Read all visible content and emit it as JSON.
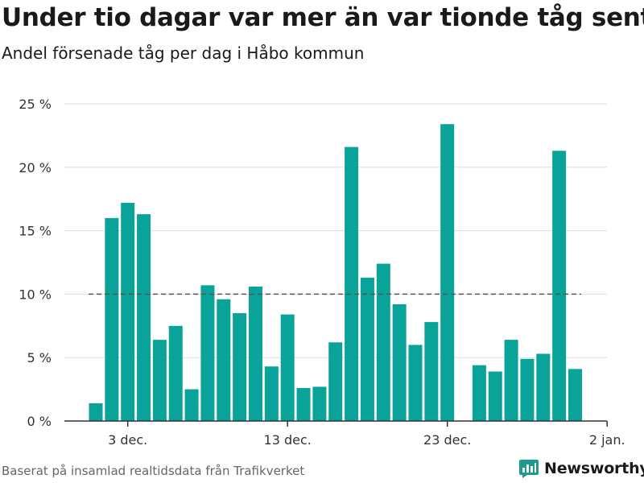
{
  "header": {
    "title": "Under tio dagar var mer än var tionde tåg sent",
    "subtitle": "Andel försenade tåg per dag i Håbo kommun"
  },
  "footer": {
    "source": "Baserat på insamlad realtidsdata från Trafikverket",
    "brand": "Newsworthy"
  },
  "colors": {
    "bar": "#0aa39a",
    "brand": "#1c9c8c",
    "grid": "#dddddd",
    "reference_line": "#555555",
    "text": "#1a1a1a",
    "muted": "#666666"
  },
  "icons": {
    "brand_logo": "newsworthy-logo-icon"
  },
  "chart_data": {
    "type": "bar",
    "title": "Under tio dagar var mer än var tionde tåg sent",
    "subtitle": "Andel försenade tåg per dag i Håbo kommun",
    "xlabel": "",
    "ylabel": "",
    "categories": [
      "1 dec.",
      "2 dec.",
      "3 dec.",
      "4 dec.",
      "5 dec.",
      "6 dec.",
      "7 dec.",
      "8 dec.",
      "9 dec.",
      "10 dec.",
      "11 dec.",
      "12 dec.",
      "13 dec.",
      "14 dec.",
      "15 dec.",
      "16 dec.",
      "17 dec.",
      "18 dec.",
      "19 dec.",
      "20 dec.",
      "21 dec.",
      "22 dec.",
      "23 dec.",
      "24 dec.",
      "25 dec.",
      "26 dec.",
      "27 dec.",
      "28 dec.",
      "29 dec.",
      "30 dec.",
      "31 dec."
    ],
    "values": [
      1.4,
      16.0,
      17.2,
      16.3,
      6.4,
      7.5,
      2.5,
      10.7,
      9.6,
      8.5,
      10.6,
      4.3,
      8.4,
      2.6,
      2.7,
      6.2,
      21.6,
      11.3,
      12.4,
      9.2,
      6.0,
      7.8,
      23.4,
      null,
      4.4,
      3.9,
      6.4,
      4.9,
      5.3,
      21.3,
      4.1
    ],
    "ylim": [
      0,
      25
    ],
    "yticks": [
      0,
      5,
      10,
      15,
      20,
      25
    ],
    "ytick_labels": [
      "0 %",
      "5 %",
      "10 %",
      "15 %",
      "20 %",
      "25 %"
    ],
    "xticks": [
      {
        "index": 2,
        "label": "3 dec."
      },
      {
        "index": 12,
        "label": "13 dec."
      },
      {
        "index": 22,
        "label": "23 dec."
      },
      {
        "index": 32,
        "label": "2 jan."
      }
    ],
    "reference_line": {
      "value": 10,
      "style": "dashed"
    },
    "grid": true,
    "legend": "none"
  }
}
